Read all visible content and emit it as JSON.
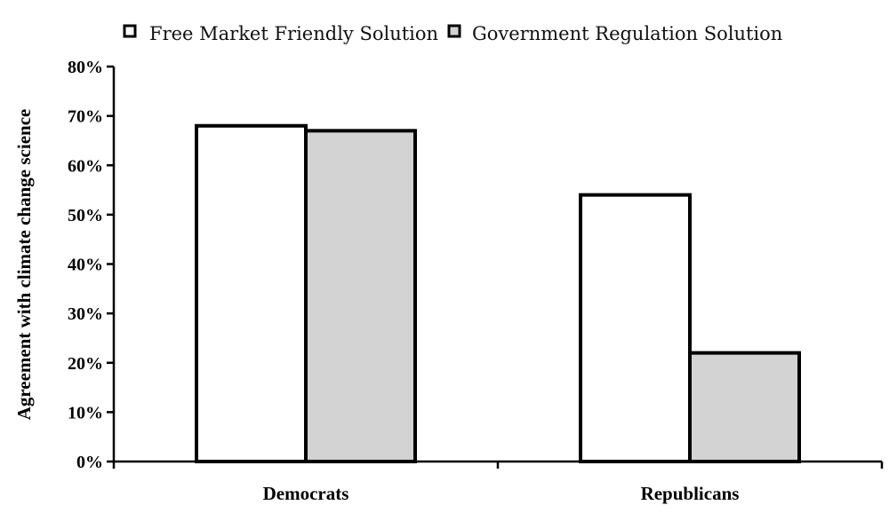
{
  "chart_data": {
    "type": "bar",
    "categories": [
      "Democrats",
      "Republicans"
    ],
    "series": [
      {
        "name": "Free Market Friendly Solution",
        "values": [
          68,
          54
        ],
        "color": "#ffffff"
      },
      {
        "name": "Government Regulation Solution",
        "values": [
          67,
          22
        ],
        "color": "#d3d3d3"
      }
    ],
    "ylabel": "Agreement with climate change science",
    "xlabel": "",
    "ylim": [
      0,
      80
    ],
    "yticks": [
      0,
      10,
      20,
      30,
      40,
      50,
      60,
      70,
      80
    ],
    "ytick_labels": [
      "0%",
      "10%",
      "20%",
      "30%",
      "40%",
      "50%",
      "60%",
      "70%",
      "80%"
    ],
    "legend_position": "top",
    "grid": false,
    "bar_outline_color": "#000000"
  }
}
